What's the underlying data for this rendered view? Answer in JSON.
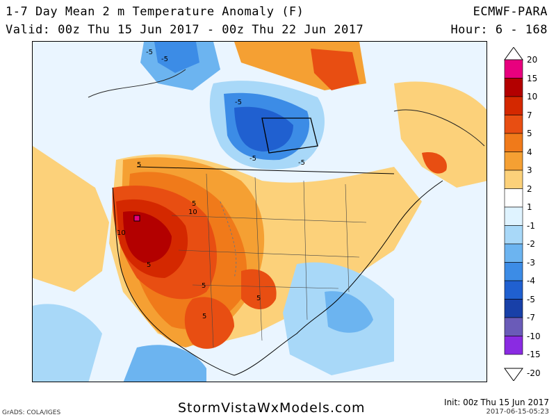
{
  "header": {
    "title": "1-7 Day Mean 2 m Temperature Anomaly (F)",
    "valid": "Valid: 00z Thu 15 Jun 2017 - 00z Thu 22 Jun 2017",
    "model": "ECMWF-PARA",
    "hour": "Hour: 6 - 168"
  },
  "footer": {
    "watermark": "StormVistaWxModels.com",
    "init": "Init: 00z Thu 15 Jun 2017",
    "stamp": "2017-06-15-05:23",
    "credit": "GrADS: COLA/IGES"
  },
  "legend": {
    "labels": [
      "20",
      "15",
      "10",
      "7",
      "5",
      "4",
      "3",
      "2",
      "1",
      "-1",
      "-2",
      "-3",
      "-4",
      "-5",
      "-7",
      "-10",
      "-15",
      "-20"
    ],
    "colors": [
      "#e8007e",
      "#b30000",
      "#d42800",
      "#e84e12",
      "#f07a1a",
      "#f5a033",
      "#fcd17a",
      "#ffffff",
      "#dff3ff",
      "#a8d8f8",
      "#6cb4f0",
      "#3c8ce6",
      "#2060d0",
      "#1840a8",
      "#6a5bb8",
      "#8a2be2"
    ]
  },
  "map_labels": [
    "-5",
    "-5",
    "-5",
    "-5",
    "-5",
    "5",
    "5",
    "5",
    "5",
    "5",
    "5",
    "10",
    "10"
  ],
  "colors": {
    "background": "#ffffff",
    "frame": "#000000"
  }
}
